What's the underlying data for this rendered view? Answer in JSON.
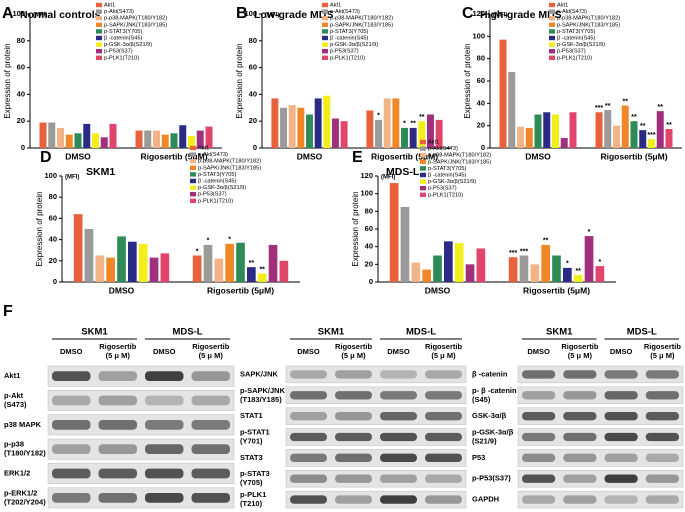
{
  "chart_data": [
    {
      "type": "bar",
      "panel": "A",
      "title": "Normal controls",
      "y_label": "Expression of protein",
      "unit_label": "(MFI)",
      "categories": [
        "DMSO",
        "Rigosertib (5μM)"
      ],
      "ylim": [
        0,
        100
      ],
      "yticks": [
        0,
        20,
        40,
        60,
        80,
        100
      ],
      "series": [
        {
          "name": "Akt1",
          "color": "#e8603c",
          "values": [
            19,
            13
          ]
        },
        {
          "name": "p-Akt(S473)",
          "color": "#9a9a9a",
          "values": [
            19,
            13
          ]
        },
        {
          "name": "p-p38-MAPK(T180/Y182)",
          "color": "#f2b487",
          "values": [
            15,
            13
          ]
        },
        {
          "name": "p-SAPK/JNK(T183/Y185)",
          "color": "#f0882a",
          "values": [
            10,
            10
          ]
        },
        {
          "name": "p-STAT3(Y705)",
          "color": "#2e8b57",
          "values": [
            11,
            11
          ]
        },
        {
          "name": "β -catenin(S45)",
          "color": "#2b2b86",
          "values": [
            18,
            17
          ]
        },
        {
          "name": "p-GSK-3α/β(S21/9)",
          "color": "#f2ee1a",
          "values": [
            11,
            9
          ]
        },
        {
          "name": "p-P53(S37)",
          "color": "#a0307e",
          "values": [
            8,
            13
          ]
        },
        {
          "name": "p-PLK1(T210)",
          "color": "#e2456c",
          "values": [
            18,
            16
          ]
        }
      ]
    },
    {
      "type": "bar",
      "panel": "B",
      "title": "Low-grade MDS",
      "y_label": "Expression of protein",
      "unit_label": "(MFI)",
      "categories": [
        "DMSO",
        "Rigosertib (5μM)"
      ],
      "ylim": [
        0,
        100
      ],
      "yticks": [
        0,
        20,
        40,
        60,
        80,
        100
      ],
      "series": [
        {
          "name": "Akt1",
          "color": "#e8603c",
          "values": [
            37,
            28
          ],
          "stars": [
            null,
            null
          ]
        },
        {
          "name": "p-Akt(S473)",
          "color": "#9a9a9a",
          "values": [
            30,
            21
          ],
          "stars": [
            null,
            "*"
          ]
        },
        {
          "name": "p-p38-MAPK(T180/Y182)",
          "color": "#f2b487",
          "values": [
            32,
            37
          ],
          "stars": [
            null,
            null
          ]
        },
        {
          "name": "p-SAPK/JNK(T183/Y185)",
          "color": "#f0882a",
          "values": [
            30,
            37
          ],
          "stars": [
            null,
            null
          ]
        },
        {
          "name": "p-STAT3(Y705)",
          "color": "#2e8b57",
          "values": [
            25,
            15
          ],
          "stars": [
            null,
            "*"
          ]
        },
        {
          "name": "β -catenin(S45)",
          "color": "#2b2b86",
          "values": [
            37,
            15
          ],
          "stars": [
            null,
            "**"
          ]
        },
        {
          "name": "p-GSK-3α/β(S21/9)",
          "color": "#f2ee1a",
          "values": [
            39,
            20
          ],
          "stars": [
            null,
            "**"
          ]
        },
        {
          "name": "p-P53(S37)",
          "color": "#a0307e",
          "values": [
            22,
            25
          ],
          "stars": [
            null,
            null
          ]
        },
        {
          "name": "p-PLK1(T210)",
          "color": "#e2456c",
          "values": [
            20,
            21
          ],
          "stars": [
            null,
            null
          ]
        }
      ]
    },
    {
      "type": "bar",
      "panel": "C",
      "title": "High-grade MDS",
      "y_label": "Expression of protein",
      "unit_label": "(MFI)",
      "categories": [
        "DMSO",
        "Rigosertib (5μM)"
      ],
      "ylim": [
        0,
        120
      ],
      "yticks": [
        0,
        20,
        40,
        60,
        80,
        100,
        120
      ],
      "series": [
        {
          "name": "Akt1",
          "color": "#e8603c",
          "values": [
            97,
            32
          ],
          "stars": [
            null,
            "***"
          ]
        },
        {
          "name": "p-Akt(S473)",
          "color": "#9a9a9a",
          "values": [
            68,
            34
          ],
          "stars": [
            null,
            "**"
          ]
        },
        {
          "name": "p-p38-MAPK(T180/Y182)",
          "color": "#f2b487",
          "values": [
            19,
            20
          ],
          "stars": [
            null,
            null
          ]
        },
        {
          "name": "p-SAPK/JNK(T183/Y185)",
          "color": "#f0882a",
          "values": [
            18,
            38
          ],
          "stars": [
            null,
            "**"
          ]
        },
        {
          "name": "p-STAT3(Y705)",
          "color": "#2e8b57",
          "values": [
            30,
            24
          ],
          "stars": [
            null,
            "**"
          ]
        },
        {
          "name": "β -catenin(S45)",
          "color": "#2b2b86",
          "values": [
            32,
            16
          ],
          "stars": [
            null,
            "**"
          ]
        },
        {
          "name": "p-GSK-3α/β(S21/9)",
          "color": "#f2ee1a",
          "values": [
            30,
            8
          ],
          "stars": [
            null,
            "***"
          ]
        },
        {
          "name": "p-P53(S37)",
          "color": "#a0307e",
          "values": [
            9,
            33
          ],
          "stars": [
            null,
            "**"
          ]
        },
        {
          "name": "p-PLK1(T210)",
          "color": "#e2456c",
          "values": [
            32,
            17
          ],
          "stars": [
            null,
            "**"
          ]
        }
      ]
    },
    {
      "type": "bar",
      "panel": "D",
      "title": "SKM1",
      "y_label": "Expression of protein",
      "unit_label": "(MFI)",
      "categories": [
        "DMSO",
        "Rigosertib (5μM)"
      ],
      "ylim": [
        0,
        100
      ],
      "yticks": [
        0,
        20,
        40,
        60,
        80,
        100
      ],
      "series": [
        {
          "name": "Akt1",
          "color": "#e8603c",
          "values": [
            64,
            25
          ],
          "stars": [
            null,
            "*"
          ]
        },
        {
          "name": "p-Akt(S473)",
          "color": "#9a9a9a",
          "values": [
            50,
            35
          ],
          "stars": [
            null,
            "*"
          ]
        },
        {
          "name": "p-p38-MAPK(T180/Y182)",
          "color": "#f2b487",
          "values": [
            25,
            22
          ],
          "stars": [
            null,
            null
          ]
        },
        {
          "name": "p-SAPK/JNK(T183/Y185)",
          "color": "#f0882a",
          "values": [
            23,
            36
          ],
          "stars": [
            null,
            "*"
          ]
        },
        {
          "name": "p-STAT3(Y705)",
          "color": "#2e8b57",
          "values": [
            43,
            37
          ],
          "stars": [
            null,
            null
          ]
        },
        {
          "name": "β -catenin(S45)",
          "color": "#2b2b86",
          "values": [
            38,
            14
          ],
          "stars": [
            null,
            "**"
          ]
        },
        {
          "name": "p-GSK-3α/β(S21/9)",
          "color": "#f2ee1a",
          "values": [
            36,
            8
          ],
          "stars": [
            null,
            "**"
          ]
        },
        {
          "name": "p-P53(S37)",
          "color": "#a0307e",
          "values": [
            23,
            35
          ],
          "stars": [
            null,
            null
          ]
        },
        {
          "name": "p-PLK1(T210)",
          "color": "#e2456c",
          "values": [
            27,
            20
          ],
          "stars": [
            null,
            null
          ]
        }
      ]
    },
    {
      "type": "bar",
      "panel": "E",
      "title": "MDS-L",
      "y_label": "Expression of protein",
      "unit_label": "(MFI)",
      "categories": [
        "DMSO",
        "Rigosertib (5μM)"
      ],
      "ylim": [
        0,
        120
      ],
      "yticks": [
        0,
        20,
        40,
        60,
        80,
        100,
        120
      ],
      "series": [
        {
          "name": "Akt1",
          "color": "#e8603c",
          "values": [
            112,
            28
          ],
          "stars": [
            null,
            "***"
          ]
        },
        {
          "name": "p-Akt(S473)",
          "color": "#9a9a9a",
          "values": [
            85,
            30
          ],
          "stars": [
            null,
            "***"
          ]
        },
        {
          "name": "p-p38-MAPK(T180/Y182)",
          "color": "#f2b487",
          "values": [
            22,
            20
          ],
          "stars": [
            null,
            null
          ]
        },
        {
          "name": "p-SAPK/JNK(T183/Y185)",
          "color": "#f0882a",
          "values": [
            14,
            42
          ],
          "stars": [
            null,
            "**"
          ]
        },
        {
          "name": "p-STAT3(Y705)",
          "color": "#2e8b57",
          "values": [
            30,
            30
          ],
          "stars": [
            null,
            null
          ]
        },
        {
          "name": "β -catenin(S45)",
          "color": "#2b2b86",
          "values": [
            46,
            16
          ],
          "stars": [
            null,
            "*"
          ]
        },
        {
          "name": "p-GSK-3α/β(S21/9)",
          "color": "#f2ee1a",
          "values": [
            44,
            8
          ],
          "stars": [
            null,
            "**"
          ]
        },
        {
          "name": "p-P53(S37)",
          "color": "#a0307e",
          "values": [
            20,
            52
          ],
          "stars": [
            null,
            "*"
          ]
        },
        {
          "name": "p-PLK1(T210)",
          "color": "#e2456c",
          "values": [
            38,
            18
          ],
          "stars": [
            null,
            "*"
          ]
        }
      ]
    }
  ],
  "blots": {
    "panel": "F",
    "groups": [
      {
        "cell_lines": [
          "SKM1",
          "MDS-L"
        ],
        "treatments": [
          [
            "DMSO"
          ],
          [
            "Rigosertib",
            "(5 μ M)"
          ],
          [
            "DMSO"
          ],
          [
            "Rigosertib",
            "(5 μ M)"
          ]
        ],
        "rows": [
          [
            "Akt1"
          ],
          [
            "p-Akt",
            "(S473)"
          ],
          [
            "p38 MAPK"
          ],
          [
            "p-p38",
            "(T180/Y182)"
          ],
          [
            "ERK1/2"
          ],
          [
            "p-ERK1/2",
            "(T202/Y204)"
          ]
        ]
      },
      {
        "cell_lines": [
          "SKM1",
          "MDS-L"
        ],
        "treatments": [
          [
            "DMSO"
          ],
          [
            "Rigosertib",
            "(5 μ M)"
          ],
          [
            "DMSO"
          ],
          [
            "Rigosertib",
            "(5 μ M)"
          ]
        ],
        "rows": [
          [
            "SAPK/JNK"
          ],
          [
            "p-SAPK/JNK",
            "(T183/Y185)"
          ],
          [
            "STAT1"
          ],
          [
            "p-STAT1",
            "(Y701)"
          ],
          [
            "STAT3"
          ],
          [
            "p-STAT3",
            "(Y705)"
          ],
          [
            "p-PLK1",
            "(T210)"
          ]
        ]
      },
      {
        "cell_lines": [
          "SKM1",
          "MDS-L"
        ],
        "treatments": [
          [
            "DMSO"
          ],
          [
            "Rigosertib",
            "(5 μ M)"
          ],
          [
            "DMSO"
          ],
          [
            "Rigosertib",
            "(5 μ M)"
          ]
        ],
        "rows": [
          [
            "β -catenin"
          ],
          [
            "p- β -catenin",
            "(S45)"
          ],
          [
            "GSK-3α/β"
          ],
          [
            "p-GSK-3α/β",
            "(S21/9)"
          ],
          [
            "P53"
          ],
          [
            "p-P53(S37)"
          ],
          [
            "GAPDH"
          ]
        ]
      }
    ]
  }
}
